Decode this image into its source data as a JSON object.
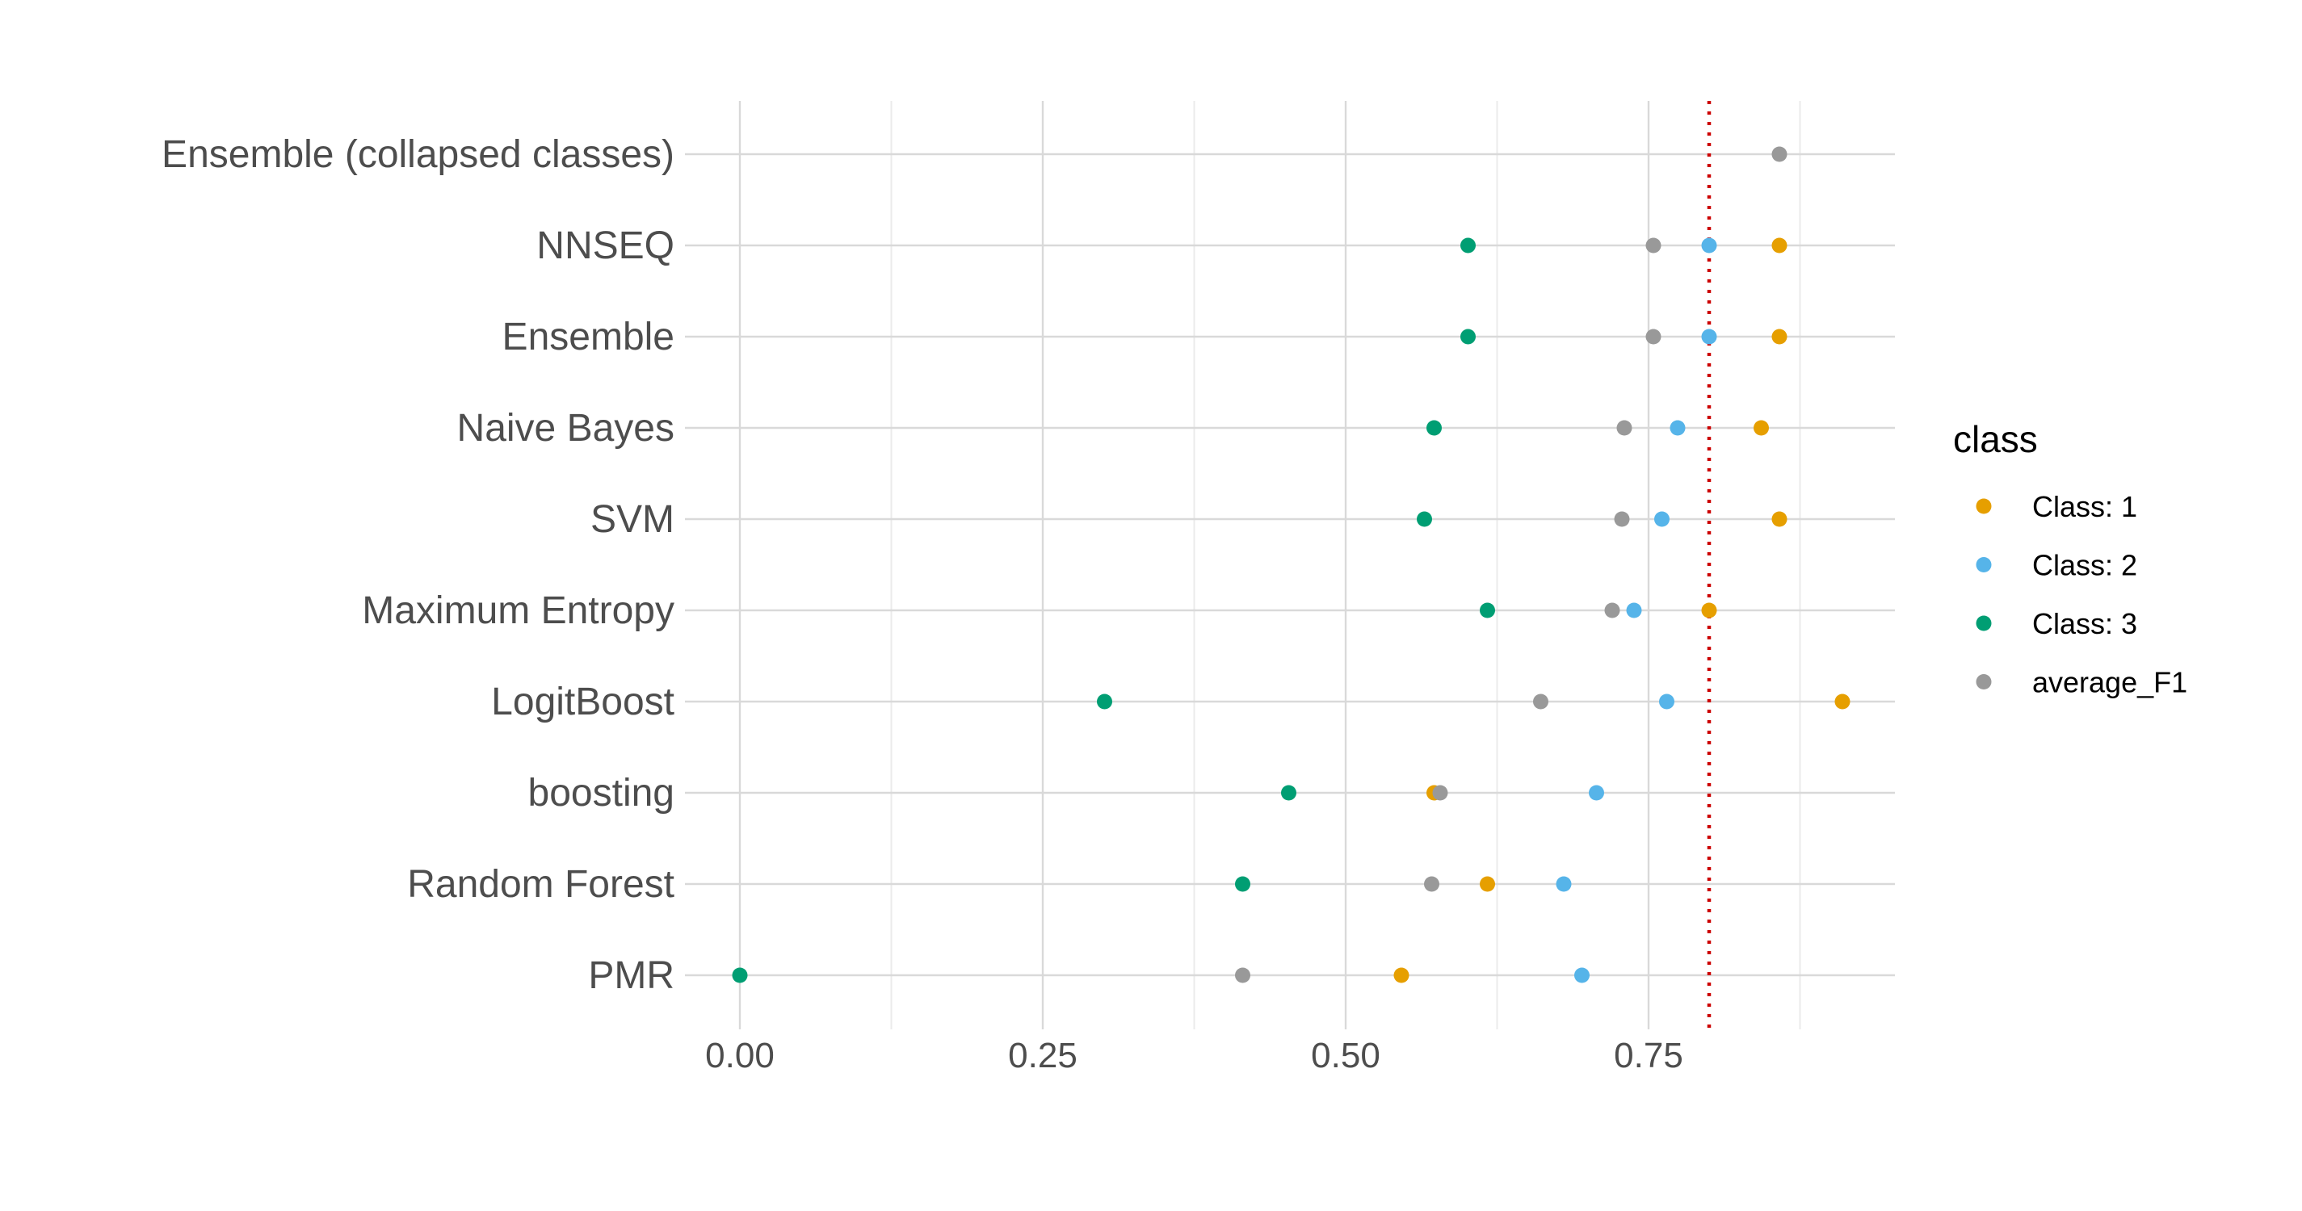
{
  "chart_data": {
    "type": "scatter",
    "title": "",
    "xlabel": "",
    "ylabel": "",
    "xlim": [
      -0.11,
      0.96
    ],
    "x_ticks": [
      "0.00",
      "0.25",
      "0.50",
      "0.75"
    ],
    "x_tick_values": [
      0.0,
      0.25,
      0.5,
      0.75
    ],
    "x_minor_tick_values": [
      0.125,
      0.375,
      0.625,
      0.875
    ],
    "grid": true,
    "reference_line": {
      "x": 0.8,
      "style": "dotted",
      "color": "#cc0000"
    },
    "categories": [
      "PMR",
      "Random Forest",
      "boosting",
      "LogitBoost",
      "Maximum Entropy",
      "SVM",
      "Naive Bayes",
      "Ensemble",
      "NNSEQ",
      "Ensemble (collapsed classes)"
    ],
    "legend": {
      "title": "class",
      "placement": "right"
    },
    "series": [
      {
        "name": "Class: 1",
        "color": "#E69F00",
        "values": [
          0.546,
          0.617,
          0.573,
          0.91,
          0.8,
          0.858,
          0.843,
          0.858,
          0.858,
          null
        ]
      },
      {
        "name": "Class: 2",
        "color": "#56B4E9",
        "values": [
          0.695,
          0.68,
          0.707,
          0.765,
          0.738,
          0.761,
          0.774,
          0.8,
          0.8,
          null
        ]
      },
      {
        "name": "Class: 3",
        "color": "#009E73",
        "values": [
          0.0,
          0.415,
          0.453,
          0.301,
          0.617,
          0.565,
          0.573,
          0.601,
          0.601,
          null
        ]
      },
      {
        "name": "average_F1",
        "color": "#999999",
        "values": [
          0.415,
          0.571,
          0.578,
          0.661,
          0.72,
          0.728,
          0.73,
          0.754,
          0.754,
          0.858
        ]
      }
    ]
  }
}
